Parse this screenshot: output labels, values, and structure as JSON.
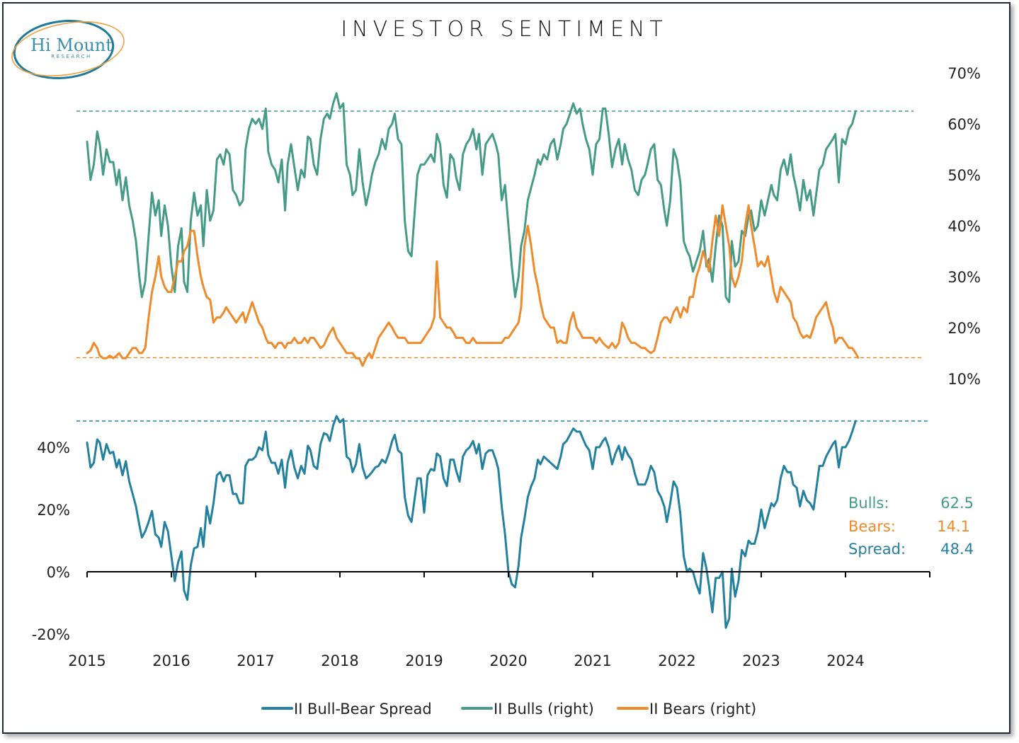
{
  "logo": {
    "name": "Hi Mount",
    "subtitle": "RESEARCH",
    "colors": {
      "ring_outer": "#1f7a99",
      "ring_inner": "#f0a040",
      "text": "#3a8fb0"
    }
  },
  "colors": {
    "bulls": "#459b87",
    "bears": "#ef8a2b",
    "spread": "#24809f",
    "axis": "#000000",
    "text": "#222222",
    "border": "#1b2a38"
  },
  "stats": {
    "bulls_label": "Bulls:",
    "bulls_value": "62.5",
    "bears_label": "Bears:",
    "bears_value": "14.1",
    "spread_label": "Spread:",
    "spread_value": "48.4"
  },
  "chart_data": {
    "type": "line",
    "title": "INVESTOR SENTIMENT",
    "x_start": 2015.0,
    "x_end": 2025.0,
    "xticks": [
      "2015",
      "2016",
      "2017",
      "2018",
      "2019",
      "2020",
      "2021",
      "2022",
      "2023",
      "2024"
    ],
    "legend": [
      "II Bull-Bear Spread",
      "II Bulls (right)",
      "II Bears (right)"
    ],
    "legend_position": "bottom",
    "upper_panel": {
      "ylabel": "",
      "axis_side": "right",
      "ylim": [
        10,
        70
      ],
      "yticks": [
        "70%",
        "60%",
        "50%",
        "40%",
        "30%",
        "20%",
        "10%"
      ],
      "ytick_values": [
        70,
        60,
        50,
        40,
        30,
        20,
        10
      ],
      "reference_lines": [
        {
          "series": "II Bulls (right)",
          "value": 62.5,
          "style": "dashed"
        },
        {
          "series": "II Bears (right)",
          "value": 14.1,
          "style": "dashed"
        }
      ]
    },
    "lower_panel": {
      "axis_side": "left",
      "ylim": [
        -20,
        50
      ],
      "yticks": [
        "40%",
        "20%",
        "0%",
        "-20%"
      ],
      "ytick_values": [
        40,
        20,
        0,
        -20
      ],
      "reference_lines": [
        {
          "series": "II Bull-Bear Spread",
          "value": 48.4,
          "style": "dashed"
        }
      ]
    },
    "x": [
      2015.0,
      2015.04,
      2015.08,
      2015.12,
      2015.15,
      2015.19,
      2015.23,
      2015.27,
      2015.31,
      2015.35,
      2015.38,
      2015.42,
      2015.46,
      2015.5,
      2015.54,
      2015.58,
      2015.62,
      2015.65,
      2015.69,
      2015.73,
      2015.77,
      2015.81,
      2015.85,
      2015.88,
      2015.92,
      2015.96,
      2016.0,
      2016.04,
      2016.08,
      2016.12,
      2016.15,
      2016.19,
      2016.23,
      2016.27,
      2016.31,
      2016.35,
      2016.38,
      2016.42,
      2016.46,
      2016.5,
      2016.54,
      2016.58,
      2016.62,
      2016.65,
      2016.69,
      2016.73,
      2016.77,
      2016.81,
      2016.85,
      2016.88,
      2016.92,
      2016.96,
      2017.0,
      2017.04,
      2017.08,
      2017.12,
      2017.15,
      2017.19,
      2017.23,
      2017.27,
      2017.31,
      2017.35,
      2017.38,
      2017.42,
      2017.46,
      2017.5,
      2017.54,
      2017.58,
      2017.62,
      2017.65,
      2017.69,
      2017.73,
      2017.77,
      2017.81,
      2017.85,
      2017.88,
      2017.92,
      2017.96,
      2018.0,
      2018.04,
      2018.08,
      2018.12,
      2018.15,
      2018.19,
      2018.23,
      2018.27,
      2018.31,
      2018.35,
      2018.38,
      2018.42,
      2018.46,
      2018.5,
      2018.54,
      2018.58,
      2018.62,
      2018.65,
      2018.69,
      2018.73,
      2018.77,
      2018.81,
      2018.85,
      2018.88,
      2018.92,
      2018.96,
      2019.0,
      2019.04,
      2019.08,
      2019.12,
      2019.15,
      2019.19,
      2019.23,
      2019.27,
      2019.31,
      2019.35,
      2019.38,
      2019.42,
      2019.46,
      2019.5,
      2019.54,
      2019.58,
      2019.62,
      2019.65,
      2019.69,
      2019.73,
      2019.77,
      2019.81,
      2019.85,
      2019.88,
      2019.92,
      2019.96,
      2020.0,
      2020.04,
      2020.08,
      2020.12,
      2020.15,
      2020.19,
      2020.23,
      2020.27,
      2020.31,
      2020.35,
      2020.38,
      2020.42,
      2020.46,
      2020.5,
      2020.54,
      2020.58,
      2020.62,
      2020.65,
      2020.69,
      2020.73,
      2020.77,
      2020.81,
      2020.85,
      2020.88,
      2020.92,
      2020.96,
      2021.0,
      2021.04,
      2021.08,
      2021.12,
      2021.15,
      2021.19,
      2021.23,
      2021.27,
      2021.31,
      2021.35,
      2021.38,
      2021.42,
      2021.46,
      2021.5,
      2021.54,
      2021.58,
      2021.62,
      2021.65,
      2021.69,
      2021.73,
      2021.77,
      2021.81,
      2021.85,
      2021.88,
      2021.92,
      2021.96,
      2022.0,
      2022.04,
      2022.08,
      2022.12,
      2022.15,
      2022.19,
      2022.23,
      2022.27,
      2022.31,
      2022.35,
      2022.38,
      2022.42,
      2022.46,
      2022.5,
      2022.54,
      2022.58,
      2022.62,
      2022.65,
      2022.69,
      2022.73,
      2022.77,
      2022.81,
      2022.85,
      2022.88,
      2022.92,
      2022.96,
      2023.0,
      2023.04,
      2023.08,
      2023.12,
      2023.15,
      2023.19,
      2023.23,
      2023.27,
      2023.31,
      2023.35,
      2023.38,
      2023.42,
      2023.46,
      2023.5,
      2023.54,
      2023.58,
      2023.62,
      2023.65,
      2023.69,
      2023.73,
      2023.77,
      2023.81,
      2023.85,
      2023.88,
      2023.92,
      2023.96,
      2024.0,
      2024.04,
      2024.08,
      2024.12,
      2024.15,
      2024.19,
      2024.23,
      2024.27
    ],
    "series": [
      {
        "name": "II Bulls (right)",
        "axis": "right",
        "values": [
          56.5,
          49,
          52,
          58.5,
          56,
          50,
          55,
          52.5,
          52.5,
          48,
          51,
          45,
          49.5,
          44,
          41,
          37,
          30,
          26,
          29,
          38,
          46.5,
          42,
          45,
          38,
          44,
          40,
          32,
          27,
          36,
          39.5,
          29,
          27,
          41,
          46.5,
          42,
          44,
          36,
          47,
          41,
          43,
          53,
          54,
          52,
          55,
          54,
          47,
          46,
          44,
          45,
          55,
          59,
          61,
          60,
          61,
          59,
          63,
          54.5,
          52,
          51,
          48.5,
          53,
          43,
          52,
          56,
          51.5,
          47,
          51,
          49.5,
          57.5,
          57,
          52,
          50,
          57,
          61,
          62,
          61,
          64,
          66,
          63,
          64,
          52,
          50,
          46,
          47,
          55,
          48.5,
          44,
          47,
          50,
          52.5,
          54,
          57,
          55,
          59,
          60,
          62,
          57,
          56,
          41,
          35,
          34,
          41,
          50,
          52,
          52,
          53,
          54,
          52.5,
          58,
          56,
          48,
          45.5,
          54,
          53,
          49.5,
          47,
          54,
          56,
          57,
          59,
          55,
          58,
          50,
          56,
          57,
          58,
          56,
          54,
          45,
          48,
          40,
          32,
          26,
          30,
          36,
          39,
          45,
          47.5,
          50,
          53,
          52,
          54,
          53,
          56,
          57,
          53,
          56,
          59,
          60,
          62,
          64,
          62,
          63,
          60,
          57,
          55,
          50,
          56,
          57,
          63,
          63,
          58,
          51.5,
          55,
          57,
          52,
          56,
          53,
          51,
          47,
          46,
          49,
          50,
          52,
          55,
          56,
          49,
          48,
          43,
          40,
          45,
          55,
          53,
          48.5,
          37,
          35,
          34,
          31,
          33,
          35,
          39,
          32,
          33.5,
          29,
          36,
          42,
          40,
          26,
          25,
          37,
          32,
          33,
          39,
          38,
          42,
          43,
          39,
          40,
          45,
          42,
          45,
          48,
          46,
          45,
          51,
          53,
          50,
          54,
          50,
          47,
          43,
          49,
          45,
          47,
          42,
          46,
          51,
          52,
          55,
          56,
          57,
          58,
          48.5,
          57,
          56,
          59,
          60,
          62.5
        ]
      },
      {
        "name": "II Bears (right)",
        "axis": "right",
        "values": [
          15,
          15.5,
          17,
          16,
          14.5,
          14,
          14,
          14.5,
          14,
          14.5,
          15,
          14,
          14,
          15,
          16,
          16,
          15,
          15,
          16,
          22,
          27,
          30,
          34,
          30,
          28,
          27,
          27,
          30,
          33,
          33,
          35,
          36,
          39,
          39,
          34,
          30,
          28,
          26,
          25.5,
          21,
          22,
          22,
          23,
          24,
          23,
          22,
          21,
          22,
          23,
          21,
          23,
          25,
          23,
          21,
          20,
          18,
          17,
          17,
          16,
          17,
          17,
          16,
          17,
          17,
          18,
          17,
          17,
          18,
          17,
          18,
          18,
          17,
          16,
          16.5,
          18,
          19,
          20,
          18,
          17,
          16,
          15,
          15,
          15,
          14,
          14,
          12.5,
          14,
          15,
          14,
          16,
          18,
          19,
          20,
          21,
          20,
          19,
          18,
          18,
          18,
          17,
          17,
          17,
          17,
          17,
          18,
          19,
          20,
          22,
          33,
          22,
          21,
          20,
          20,
          19,
          18,
          18,
          18,
          17,
          17,
          18,
          17,
          17,
          17,
          17,
          17,
          17,
          17,
          17,
          17,
          18,
          18,
          19,
          20,
          21,
          24,
          36,
          40,
          36,
          31,
          28,
          25,
          22,
          21,
          20,
          20,
          17,
          17.5,
          17,
          17,
          21,
          23,
          20,
          19,
          18,
          18,
          18,
          18,
          17,
          18,
          17,
          16.5,
          16,
          17,
          16,
          17,
          21,
          20,
          18,
          17,
          17,
          16.5,
          16,
          16,
          15.5,
          15,
          15.5,
          18,
          21,
          22,
          22,
          21,
          23,
          24,
          22,
          24,
          23,
          26,
          26,
          30,
          32,
          35,
          33,
          31,
          37,
          42,
          38,
          44,
          40,
          36,
          30,
          28,
          30,
          33,
          40,
          44,
          40,
          36,
          32,
          33,
          32,
          34,
          30,
          27,
          25,
          28,
          27,
          26,
          25,
          22,
          21,
          19,
          18,
          18.5,
          18,
          20,
          22,
          23,
          24,
          25,
          22,
          20,
          17,
          18,
          18,
          17,
          16,
          16,
          15,
          14.1
        ]
      },
      {
        "name": "II Bull-Bear Spread",
        "axis": "left",
        "values": [
          41.5,
          33.5,
          35,
          42.5,
          41.5,
          36,
          41,
          38,
          38.5,
          33.5,
          36,
          31,
          35.5,
          29,
          25,
          21,
          15,
          11,
          13,
          16,
          19.5,
          12,
          11,
          8,
          16,
          13,
          5,
          -3,
          3,
          6.5,
          -6,
          -9,
          2,
          7.5,
          8,
          14,
          8,
          21,
          15.5,
          22,
          31,
          32,
          29,
          31,
          31,
          25,
          25,
          22,
          22,
          34,
          36,
          36,
          37,
          40,
          39,
          45,
          37.5,
          35,
          35,
          31.5,
          36,
          27,
          35,
          39,
          33.5,
          30,
          34,
          31.5,
          40.5,
          39,
          34,
          33,
          41,
          44.5,
          44,
          42,
          47,
          50,
          48,
          49,
          37,
          36,
          32,
          34.5,
          41,
          33.5,
          30,
          31,
          32,
          33.5,
          34,
          36,
          35,
          38,
          42,
          44,
          39,
          38,
          24,
          18,
          16,
          22,
          30,
          30,
          19,
          31,
          33,
          32.5,
          38,
          37,
          30,
          27.5,
          36,
          36,
          32.5,
          29,
          37,
          39,
          40,
          42,
          38,
          41,
          33,
          38,
          39,
          39,
          36,
          33,
          21,
          12,
          0,
          -4,
          -5,
          2,
          11,
          17,
          24,
          27.5,
          30,
          36,
          34.5,
          37,
          36,
          35,
          34,
          33,
          37,
          41,
          42,
          44,
          46,
          45,
          45,
          43,
          40.5,
          39,
          33,
          40,
          40,
          42,
          43,
          40,
          34.5,
          38,
          40.5,
          36,
          40,
          37.5,
          36,
          31.5,
          28,
          28,
          28,
          30,
          34,
          32,
          26,
          24,
          21,
          16,
          22,
          29,
          27,
          18.5,
          5,
          0,
          1,
          0,
          -4,
          -7,
          6,
          1,
          -4.5,
          -13,
          -2,
          -2,
          0,
          -18,
          -15,
          1,
          -8,
          -3,
          7,
          5,
          10,
          9,
          9,
          13,
          20,
          14,
          18,
          22,
          21,
          23,
          30,
          34,
          32,
          32,
          28,
          27,
          21,
          26,
          23,
          22,
          20,
          26,
          34,
          34,
          37,
          39,
          41,
          42,
          33.5,
          40,
          40,
          42,
          45,
          48.4
        ]
      }
    ]
  }
}
